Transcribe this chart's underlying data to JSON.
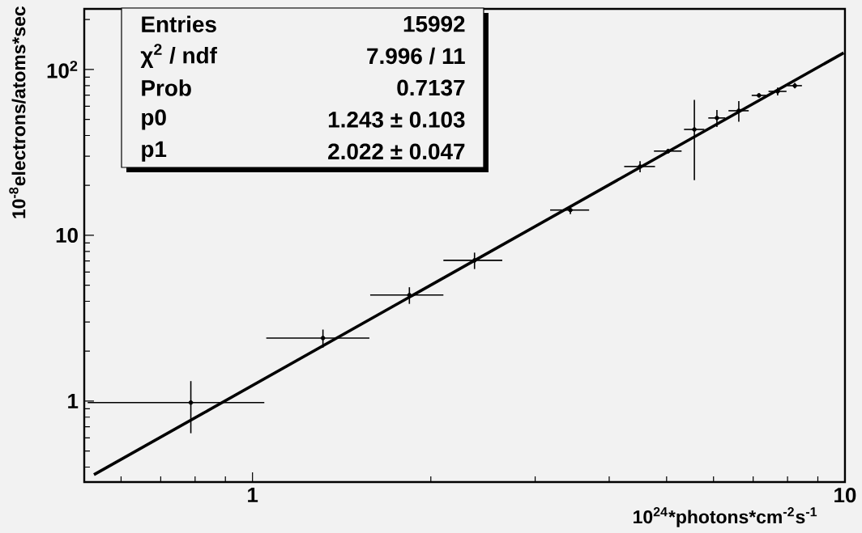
{
  "chart_data": {
    "type": "scatter",
    "xlabel": "10$^{24}$*photons*cm$^{-2}$s$^{-1}$",
    "ylabel": "10$^{-8}$electrons/atoms*sec",
    "log": "xy",
    "xlim": [
      0.52,
      10
    ],
    "ylim": [
      0.325,
      232
    ],
    "xticks": [
      1,
      10
    ],
    "yticks": [
      1,
      10,
      {
        "value": 100,
        "label": "10$^{2}$"
      }
    ],
    "annotations": [
      "Entries",
      "15992",
      "χ$^{2}$ / ndf",
      "7.996 / 11",
      "Prob",
      "0.7137",
      "p0",
      "1.243 ± 0.103",
      "p1",
      "2.022 ± 0.047"
    ],
    "series": [
      {
        "color": "#000000",
        "marker": "circle",
        "x": [
          0.787,
          1.315,
          1.84,
          2.37,
          3.44,
          4.51,
          5.03,
          5.57,
          6.08,
          6.62,
          7.16,
          7.7,
          8.23
        ],
        "values": [
          0.98,
          2.4,
          4.36,
          7.06,
          14.2,
          26.0,
          32.2,
          43.5,
          51,
          56.4,
          69.8,
          73.8,
          79.9
        ],
        "xerrors": [
          0.26,
          0.26,
          0.26,
          0.27,
          0.26,
          0.27,
          0.27,
          0.22,
          0.2,
          0.26,
          0.2,
          0.27,
          0.23
        ],
        "errors": [
          0.34,
          0.3,
          0.5,
          0.8,
          0.8,
          2,
          1,
          22,
          6,
          8,
          2,
          4,
          3
        ]
      },
      {
        "type": "line",
        "marker": "none",
        "color": "#000000",
        "x": [
          0.54,
          9.95
        ],
        "values": [
          0.36,
          126
        ]
      }
    ]
  }
}
